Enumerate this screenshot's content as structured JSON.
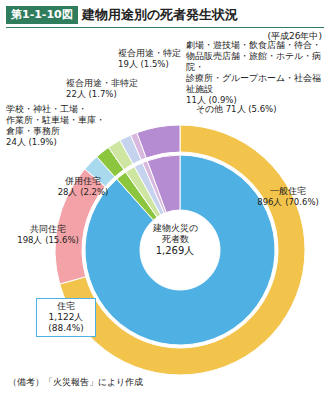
{
  "chart_data": {
    "type": "pie",
    "figure_label": "第1-1-10図",
    "title": "建物用途別の死者発生状況",
    "subtitle": "(平成26年中)",
    "center_label": "建物火災の\n死者数",
    "total": 1269,
    "total_label": "1,269人",
    "note": "（備考）「火災報告」により作成",
    "slices": [
      {
        "name": "一般住宅",
        "value": 896,
        "value_label": "896人 (70.6%)",
        "color": "#f2c44c"
      },
      {
        "name": "共同住宅",
        "value": 198,
        "value_label": "198人 (15.6%)",
        "color": "#f3a3a8"
      },
      {
        "name": "併用住宅",
        "value": 28,
        "value_label": "28人 (2.2%)",
        "color": "#a9d9ec"
      },
      {
        "name": "学校・神社・工場・\n作業所・駐車場・車庫・\n倉庫・事務所",
        "value": 24,
        "value_label": "24人 (1.9%)",
        "color": "#8cc63f"
      },
      {
        "name": "複合用途・非特定",
        "value": 22,
        "value_label": "22人 (1.7%)",
        "color": "#cfe6a3"
      },
      {
        "name": "複合用途・特定",
        "value": 19,
        "value_label": "19人 (1.5%)",
        "color": "#c5d3ef"
      },
      {
        "name": "劇場・遊技場・飲食店舗・待合・\n物品販売店舗・旅館・ホテル・病院・\n診療所・グループホーム・社会福祉施設",
        "value": 11,
        "value_label": "11人 (0.9%)",
        "color": "#d9b8e0"
      },
      {
        "name": "その他",
        "value": 71,
        "value_label": "71人 (5.6%)",
        "color": "#b58bd1"
      }
    ],
    "inner": {
      "name": "住宅",
      "value": 1122,
      "value_label": "1,122人\n(88.4%)",
      "color": "#4fb1e3",
      "members": [
        "一般住宅",
        "共同住宅",
        "併用住宅"
      ]
    }
  }
}
